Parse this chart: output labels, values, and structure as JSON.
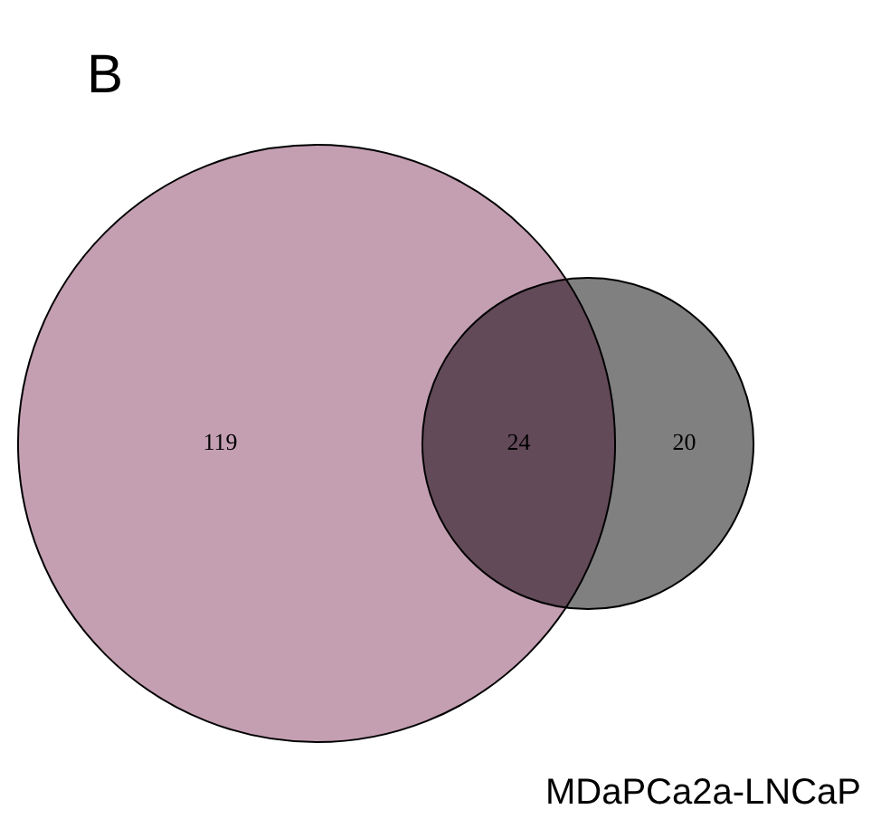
{
  "chart_data": {
    "type": "other",
    "title": "B",
    "xlabel": "MDaPCa2a-LNCaP",
    "categories": [
      null,
      null,
      null
    ],
    "values": [
      119,
      24,
      20
    ],
    "data_labels": true,
    "colors": [
      "#c49fb2",
      "#634a58",
      "#808080"
    ]
  }
}
